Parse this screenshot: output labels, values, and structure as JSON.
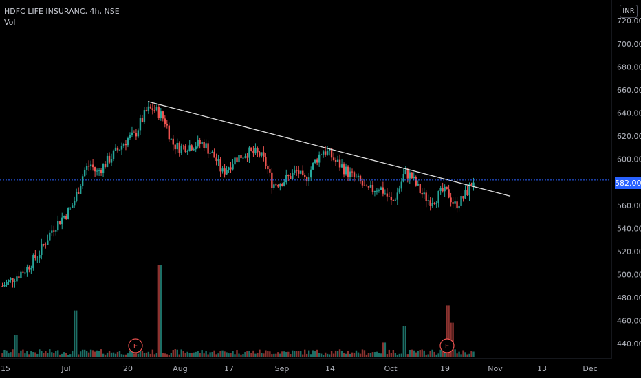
{
  "header": {
    "symbol_line": "HDFC LIFE INSURANC, 4h, NSE",
    "volume_label": "Vol",
    "currency": "INR"
  },
  "colors": {
    "background": "#000000",
    "up": "#26a69a",
    "down": "#ef5350",
    "vol_up": "#1d6f66",
    "vol_down": "#8c3330",
    "trendline": "#e0e0e0",
    "price_line": "#2962ff",
    "axis_text": "#b2b5be"
  },
  "chart_data": {
    "type": "candlestick",
    "symbol": "HDFC LIFE INSURANC",
    "timeframe": "4h",
    "exchange": "NSE",
    "y_ticks": [
      440,
      460,
      480,
      500,
      520,
      540,
      560,
      580,
      600,
      620,
      640,
      660,
      680,
      700,
      720
    ],
    "ylim": [
      427,
      738
    ],
    "last_price": "582.00",
    "x_ticks": [
      "15",
      "Jul",
      "20",
      "Aug",
      "17",
      "Sep",
      "14",
      "Oct",
      "19",
      "Nov",
      "13",
      "Dec"
    ],
    "earnings_label": "E",
    "price_path": [
      [
        0,
        490
      ],
      [
        0.02,
        498
      ],
      [
        0.04,
        506
      ],
      [
        0.06,
        520
      ],
      [
        0.08,
        540
      ],
      [
        0.1,
        552
      ],
      [
        0.11,
        558
      ],
      [
        0.12,
        572
      ],
      [
        0.13,
        590
      ],
      [
        0.14,
        596
      ],
      [
        0.15,
        588
      ],
      [
        0.17,
        600
      ],
      [
        0.19,
        612
      ],
      [
        0.2,
        618
      ],
      [
        0.21,
        620
      ],
      [
        0.22,
        632
      ],
      [
        0.23,
        642
      ],
      [
        0.24,
        644
      ],
      [
        0.25,
        640
      ],
      [
        0.26,
        632
      ],
      [
        0.27,
        614
      ],
      [
        0.28,
        610
      ],
      [
        0.3,
        612
      ],
      [
        0.32,
        614
      ],
      [
        0.34,
        600
      ],
      [
        0.35,
        588
      ],
      [
        0.37,
        600
      ],
      [
        0.39,
        606
      ],
      [
        0.41,
        604
      ],
      [
        0.42,
        595
      ],
      [
        0.43,
        578
      ],
      [
        0.45,
        582
      ],
      [
        0.47,
        590
      ],
      [
        0.48,
        580
      ],
      [
        0.49,
        590
      ],
      [
        0.5,
        600
      ],
      [
        0.51,
        608
      ],
      [
        0.52,
        605
      ],
      [
        0.53,
        598
      ],
      [
        0.54,
        594
      ],
      [
        0.55,
        588
      ],
      [
        0.57,
        580
      ],
      [
        0.58,
        572
      ],
      [
        0.6,
        576
      ],
      [
        0.61,
        570
      ],
      [
        0.62,
        562
      ],
      [
        0.63,
        572
      ],
      [
        0.64,
        588
      ],
      [
        0.65,
        586
      ],
      [
        0.66,
        576
      ],
      [
        0.67,
        568
      ],
      [
        0.68,
        564
      ],
      [
        0.69,
        566
      ],
      [
        0.7,
        572
      ],
      [
        0.71,
        570
      ],
      [
        0.72,
        560
      ],
      [
        0.73,
        564
      ],
      [
        0.74,
        572
      ],
      [
        0.75,
        582
      ]
    ],
    "volume": {
      "ylim": [
        0,
        100
      ],
      "spikes": {
        "0.03": 18,
        "0.155": 38,
        "0.335": 75,
        "0.81": 12,
        "0.855": 25,
        "0.945": 42,
        "0.955": 28
      }
    },
    "trendline": {
      "x": [
        0.23,
        1.0
      ],
      "y": [
        650,
        568
      ]
    }
  }
}
